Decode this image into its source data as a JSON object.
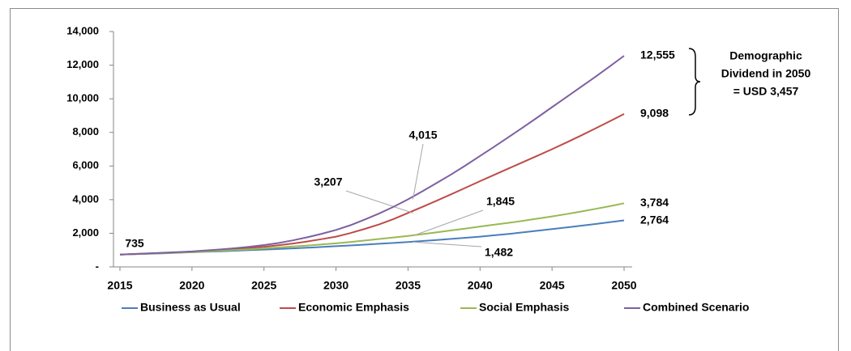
{
  "chart_data": {
    "type": "line",
    "x": [
      2015,
      2016,
      2017,
      2018,
      2019,
      2020,
      2021,
      2022,
      2023,
      2024,
      2025,
      2026,
      2027,
      2028,
      2029,
      2030,
      2031,
      2032,
      2033,
      2034,
      2035,
      2036,
      2037,
      2038,
      2039,
      2040,
      2041,
      2042,
      2043,
      2044,
      2045,
      2046,
      2047,
      2048,
      2049,
      2050
    ],
    "xlim": [
      2015,
      2050
    ],
    "xticks": [
      2015,
      2020,
      2025,
      2030,
      2035,
      2040,
      2045,
      2050
    ],
    "ylim": [
      0,
      14000
    ],
    "yticks": [
      {
        "value": 0,
        "label": "-"
      },
      {
        "value": 2000,
        "label": "2,000"
      },
      {
        "value": 4000,
        "label": "4,000"
      },
      {
        "value": 6000,
        "label": "6,000"
      },
      {
        "value": 8000,
        "label": "8,000"
      },
      {
        "value": 10000,
        "label": "10,000"
      },
      {
        "value": 12000,
        "label": "12,000"
      },
      {
        "value": 14000,
        "label": "14,000"
      }
    ],
    "grid": false,
    "legend": "bottom",
    "series": [
      {
        "name": "Business as Usual",
        "color": "#4a7ebb",
        "values": [
          735,
          760,
          785,
          810,
          840,
          870,
          900,
          930,
          960,
          995,
          1030,
          1065,
          1100,
          1140,
          1185,
          1230,
          1275,
          1325,
          1375,
          1425,
          1482,
          1540,
          1600,
          1665,
          1730,
          1800,
          1880,
          1965,
          2055,
          2150,
          2250,
          2350,
          2450,
          2550,
          2655,
          2764
        ],
        "value_labels": [
          "735",
          null,
          null,
          null,
          null,
          null,
          null,
          null,
          null,
          null,
          null,
          null,
          null,
          null,
          null,
          null,
          null,
          null,
          null,
          null,
          "1,482",
          null,
          null,
          null,
          null,
          null,
          null,
          null,
          null,
          null,
          null,
          null,
          null,
          null,
          null,
          "2,764"
        ]
      },
      {
        "name": "Economic Emphasis",
        "color": "#be4b48",
        "values": [
          735,
          765,
          795,
          830,
          865,
          900,
          950,
          1000,
          1060,
          1130,
          1200,
          1290,
          1390,
          1510,
          1650,
          1800,
          2010,
          2260,
          2530,
          2850,
          3207,
          3570,
          3940,
          4320,
          4710,
          5100,
          5480,
          5860,
          6240,
          6620,
          7000,
          7400,
          7810,
          8230,
          8660,
          9098
        ],
        "value_labels": [
          null,
          null,
          null,
          null,
          null,
          null,
          null,
          null,
          null,
          null,
          null,
          null,
          null,
          null,
          null,
          null,
          null,
          null,
          null,
          null,
          "3,207",
          null,
          null,
          null,
          null,
          null,
          null,
          null,
          null,
          null,
          null,
          null,
          null,
          null,
          null,
          "9,098"
        ]
      },
      {
        "name": "Social Emphasis",
        "color": "#98b954",
        "values": [
          735,
          765,
          795,
          820,
          850,
          880,
          920,
          960,
          1005,
          1050,
          1100,
          1155,
          1210,
          1270,
          1335,
          1400,
          1480,
          1570,
          1660,
          1750,
          1845,
          1950,
          2060,
          2170,
          2280,
          2400,
          2510,
          2620,
          2740,
          2870,
          3000,
          3140,
          3290,
          3450,
          3610,
          3784
        ],
        "value_labels": [
          null,
          null,
          null,
          null,
          null,
          null,
          null,
          null,
          null,
          null,
          null,
          null,
          null,
          null,
          null,
          null,
          null,
          null,
          null,
          null,
          "1,845",
          null,
          null,
          null,
          null,
          null,
          null,
          null,
          null,
          null,
          null,
          null,
          null,
          null,
          null,
          "3,784"
        ]
      },
      {
        "name": "Combined Scenario",
        "color": "#7d60a0",
        "values": [
          735,
          770,
          805,
          840,
          880,
          920,
          980,
          1040,
          1110,
          1200,
          1300,
          1420,
          1580,
          1760,
          1970,
          2200,
          2480,
          2820,
          3180,
          3580,
          4015,
          4500,
          5000,
          5500,
          6040,
          6600,
          7160,
          7730,
          8310,
          8900,
          9500,
          10100,
          10700,
          11300,
          11920,
          12555
        ],
        "value_labels": [
          null,
          null,
          null,
          null,
          null,
          null,
          null,
          null,
          null,
          null,
          null,
          null,
          null,
          null,
          null,
          null,
          null,
          null,
          null,
          null,
          "4,015",
          null,
          null,
          null,
          null,
          null,
          null,
          null,
          null,
          null,
          null,
          null,
          null,
          null,
          null,
          "12,555"
        ]
      }
    ],
    "annotation": [
      "Demographic",
      "Dividend in 2050",
      "= USD 3,457"
    ]
  }
}
